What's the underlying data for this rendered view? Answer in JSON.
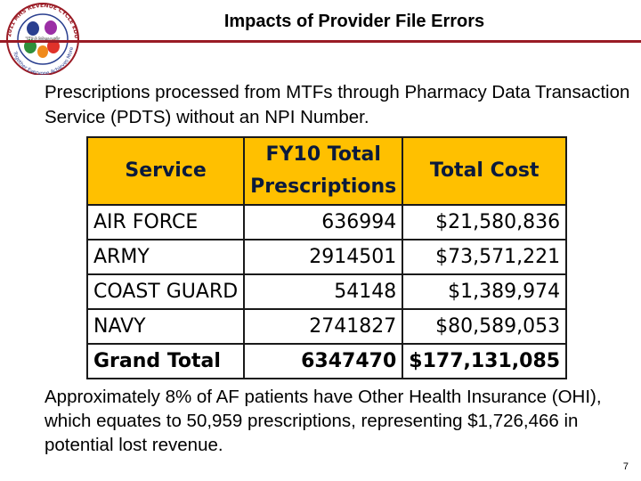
{
  "slide": {
    "title": "Impacts of Provider File Errors",
    "intro": "Prescriptions processed from MTFs through Pharmacy Data Transaction Service (PDTS) without an NPI Number.",
    "outro": "Approximately 8% of AF patients have Other Health Insurance (OHI), which equates to 50,959 prescriptions, representing $1,726,466 in potential lost revenue.",
    "page_number": "7"
  },
  "logo": {
    "ring_text": "2011 MHS REVENUE CYCLE EDUCATION CONFERENCE",
    "bottom_text": "Together Everyone Achieves More",
    "center_text": "TEAMwork"
  },
  "table": {
    "headers": {
      "service": "Service",
      "prescriptions_line1": "FY10 Total",
      "prescriptions_line2": "Prescriptions",
      "cost": "Total Cost"
    },
    "rows": [
      {
        "service": "AIR FORCE",
        "prescriptions": "636994",
        "cost": "$21,580,836"
      },
      {
        "service": "ARMY",
        "prescriptions": "2914501",
        "cost": "$73,571,221"
      },
      {
        "service": "COAST GUARD",
        "prescriptions": "54148",
        "cost": "$1,389,974"
      },
      {
        "service": "NAVY",
        "prescriptions": "2741827",
        "cost": "$80,589,053"
      },
      {
        "service": "Grand Total",
        "prescriptions": "6347470",
        "cost": "$177,131,085"
      }
    ]
  },
  "colors": {
    "header_fill": "#ffc000",
    "title_rule": "#9a1b25"
  }
}
